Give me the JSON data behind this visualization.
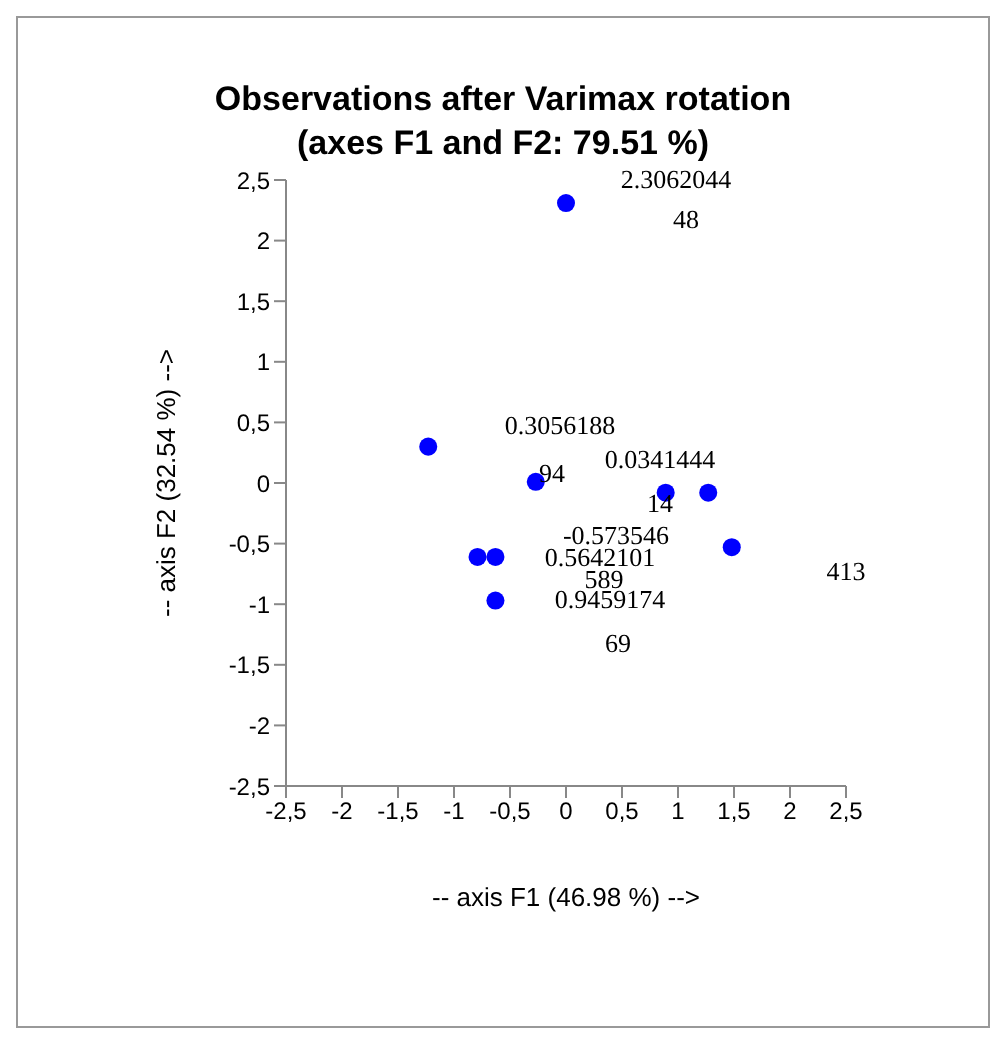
{
  "chart_data": {
    "type": "scatter",
    "title": "Observations after Varimax rotation\n(axes F1 and F2: 79.51 %)",
    "xlabel": "-- axis F1 (46.98 %) -->",
    "ylabel": "-- axis F2 (32.54 %) -->",
    "x": [
      0,
      -1.23,
      -0.27,
      0.89,
      1.27,
      1.48,
      -0.79,
      -0.63,
      -0.63
    ],
    "series": [
      {
        "color": "#0000ff",
        "values": [
          2.31,
          0.3,
          0.01,
          -0.08,
          -0.08,
          -0.53,
          -0.61,
          -0.61,
          -0.97
        ]
      }
    ],
    "marker": "circle",
    "legend": false,
    "grid": false,
    "xlim": [
      -2.5,
      2.5
    ],
    "ylim": [
      -2.5,
      2.5
    ],
    "xticks": [
      {
        "value": -2.5,
        "label": "-2,5"
      },
      -2,
      {
        "value": -1.5,
        "label": "-1,5"
      },
      -1,
      {
        "value": -0.5,
        "label": "-0,5"
      },
      0,
      {
        "value": 0.5,
        "label": "0,5"
      },
      1,
      {
        "value": 1.5,
        "label": "1,5"
      },
      2,
      {
        "value": 2.5,
        "label": "2,5"
      }
    ],
    "yticks": [
      {
        "value": -2.5,
        "label": "-2,5"
      },
      -2,
      {
        "value": -1.5,
        "label": "-1,5"
      },
      -1,
      {
        "value": -0.5,
        "label": "-0,5"
      },
      0,
      {
        "value": 0.5,
        "label": "0,5"
      },
      1,
      {
        "value": 1.5,
        "label": "1,5"
      },
      2,
      {
        "value": 2.5,
        "label": "2,5"
      }
    ],
    "annotations": [
      "2.3062044",
      "48",
      "0.3056188",
      "94",
      "0.0341444",
      "14",
      "-0.573546",
      "0.5642101",
      "589",
      "0.9459174",
      "69",
      "413"
    ]
  }
}
